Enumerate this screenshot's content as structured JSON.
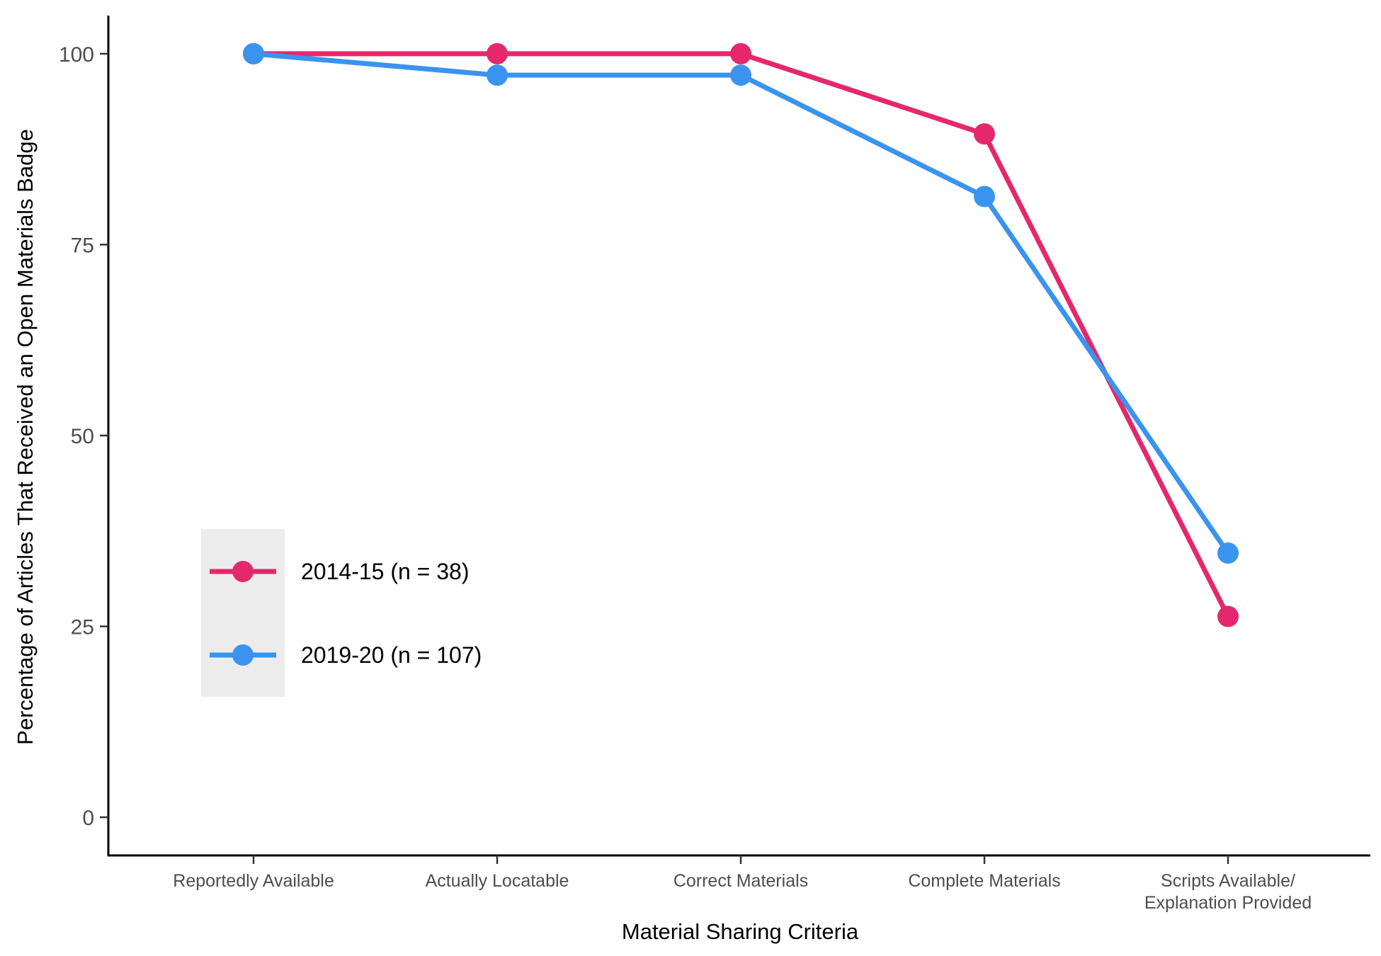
{
  "chart_data": {
    "type": "line",
    "xlabel": "Material Sharing Criteria",
    "ylabel": "Percentage of Articles That Received an Open Materials Badge",
    "categories": [
      [
        "Reportedly Available"
      ],
      [
        "Actually Locatable"
      ],
      [
        "Correct Materials"
      ],
      [
        "Complete Materials"
      ],
      [
        "Scripts Available/",
        "Explanation Provided"
      ]
    ],
    "ylim": [
      -5,
      105
    ],
    "yticks": [
      0,
      25,
      50,
      75,
      100
    ],
    "grid": false,
    "legend_position": "left-center",
    "series": [
      {
        "name": "2014-15 (n = 38)",
        "color": "#E4286B",
        "values": [
          100,
          100,
          100,
          89.5,
          26.3
        ]
      },
      {
        "name": "2019-20 (n = 107)",
        "color": "#3A93EE",
        "values": [
          100,
          97.2,
          97.2,
          81.3,
          34.6
        ]
      }
    ]
  }
}
